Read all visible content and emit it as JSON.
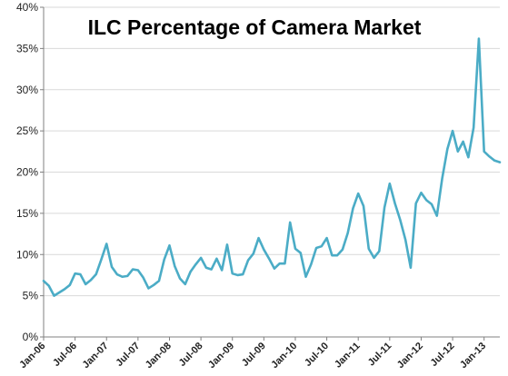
{
  "chart_data": {
    "type": "line",
    "title": "ILC Percentage of Camera Market",
    "xlabel": "",
    "ylabel": "",
    "ylim": [
      0,
      40
    ],
    "y_ticks": [
      "0%",
      "5%",
      "10%",
      "15%",
      "20%",
      "25%",
      "30%",
      "35%",
      "40%"
    ],
    "x_range": [
      "Jan-06",
      "Apr-13"
    ],
    "x_ticks": [
      "Jan-06",
      "Jul-06",
      "Jan-07",
      "Jul-07",
      "Jan-08",
      "Jul-08",
      "Jan-09",
      "Jul-09",
      "Jan-10",
      "Jul-10",
      "Jan-11",
      "Jul-11",
      "Jan-12",
      "Jul-12",
      "Jan-13"
    ],
    "grid": "horizontal",
    "legend": "none",
    "line_color": "#4bacc6",
    "series": [
      {
        "x": [
          "Jan-06",
          "Feb-06",
          "Mar-06",
          "Apr-06",
          "May-06",
          "Jun-06",
          "Jul-06",
          "Aug-06",
          "Sep-06",
          "Oct-06",
          "Nov-06",
          "Dec-06",
          "Jan-07",
          "Feb-07",
          "Mar-07",
          "Apr-07",
          "May-07",
          "Jun-07",
          "Jul-07",
          "Aug-07",
          "Sep-07",
          "Oct-07",
          "Nov-07",
          "Dec-07",
          "Jan-08",
          "Feb-08",
          "Mar-08",
          "Apr-08",
          "May-08",
          "Jun-08",
          "Jul-08",
          "Aug-08",
          "Sep-08",
          "Oct-08",
          "Nov-08",
          "Dec-08",
          "Jan-09",
          "Feb-09",
          "Mar-09",
          "Apr-09",
          "May-09",
          "Jun-09",
          "Jul-09",
          "Aug-09",
          "Sep-09",
          "Oct-09",
          "Nov-09",
          "Dec-09",
          "Jan-10",
          "Feb-10",
          "Mar-10",
          "Apr-10",
          "May-10",
          "Jun-10",
          "Jul-10",
          "Aug-10",
          "Sep-10",
          "Oct-10",
          "Nov-10",
          "Dec-10",
          "Jan-11",
          "Feb-11",
          "Mar-11",
          "Apr-11",
          "May-11",
          "Jun-11",
          "Jul-11",
          "Aug-11",
          "Sep-11",
          "Oct-11",
          "Nov-11",
          "Dec-11",
          "Jan-12",
          "Feb-12",
          "Mar-12",
          "Apr-12",
          "May-12",
          "Jun-12",
          "Jul-12",
          "Aug-12",
          "Sep-12",
          "Oct-12",
          "Nov-12",
          "Dec-12",
          "Jan-13",
          "Feb-13",
          "Mar-13",
          "Apr-13"
        ],
        "values": [
          6.8,
          6.2,
          5.0,
          5.4,
          5.8,
          6.3,
          7.7,
          7.6,
          6.4,
          6.9,
          7.6,
          9.4,
          11.3,
          8.5,
          7.6,
          7.3,
          7.4,
          8.2,
          8.1,
          7.2,
          5.9,
          6.3,
          6.8,
          9.4,
          11.1,
          8.6,
          7.1,
          6.4,
          7.9,
          8.8,
          9.6,
          8.4,
          8.2,
          9.5,
          8.1,
          11.2,
          7.7,
          7.5,
          7.6,
          9.3,
          10.1,
          12.0,
          10.6,
          9.5,
          8.3,
          8.9,
          8.9,
          13.9,
          10.7,
          10.2,
          7.3,
          8.8,
          10.8,
          11.0,
          12.0,
          9.9,
          9.9,
          10.6,
          12.6,
          15.6,
          17.4,
          15.9,
          10.7,
          9.6,
          10.4,
          15.7,
          18.6,
          16.2,
          14.2,
          11.8,
          8.4,
          16.2,
          17.5,
          16.6,
          16.1,
          14.7,
          19.2,
          22.8,
          25.0,
          22.5,
          23.7,
          21.8,
          25.4,
          36.2,
          22.5,
          21.9,
          21.4,
          21.2
        ]
      }
    ]
  }
}
